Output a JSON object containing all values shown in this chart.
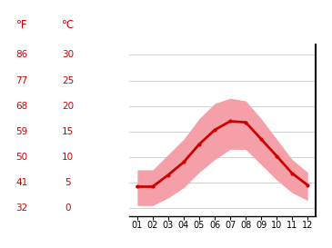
{
  "months": [
    1,
    2,
    3,
    4,
    5,
    6,
    7,
    8,
    9,
    10,
    11,
    12
  ],
  "month_labels": [
    "01",
    "02",
    "03",
    "04",
    "05",
    "06",
    "07",
    "08",
    "09",
    "10",
    "11",
    "12"
  ],
  "mean_temp": [
    4.2,
    4.2,
    6.5,
    9.0,
    12.5,
    15.3,
    17.0,
    16.8,
    13.5,
    10.2,
    6.8,
    4.5
  ],
  "upper_band": [
    7.5,
    7.5,
    10.5,
    13.5,
    17.5,
    20.5,
    21.5,
    21.0,
    17.5,
    13.5,
    9.5,
    7.0
  ],
  "lower_band": [
    0.5,
    0.5,
    2.0,
    4.0,
    7.0,
    9.5,
    11.5,
    11.5,
    8.5,
    5.5,
    3.0,
    1.5
  ],
  "celsius_ticks": [
    0,
    5,
    10,
    15,
    20,
    25,
    30
  ],
  "fahrenheit_ticks": [
    32,
    41,
    50,
    59,
    68,
    77,
    86
  ],
  "ylim": [
    -1.5,
    32
  ],
  "xlim": [
    0.5,
    12.5
  ],
  "band_color": "#f5a0a8",
  "line_color": "#cc0000",
  "marker_color": "#cc0000",
  "tick_color": "#cc0000",
  "label_color": "#cc0000",
  "bg_color": "#ffffff",
  "grid_color": "#cccccc",
  "label_F": "°F",
  "label_C": "°C"
}
